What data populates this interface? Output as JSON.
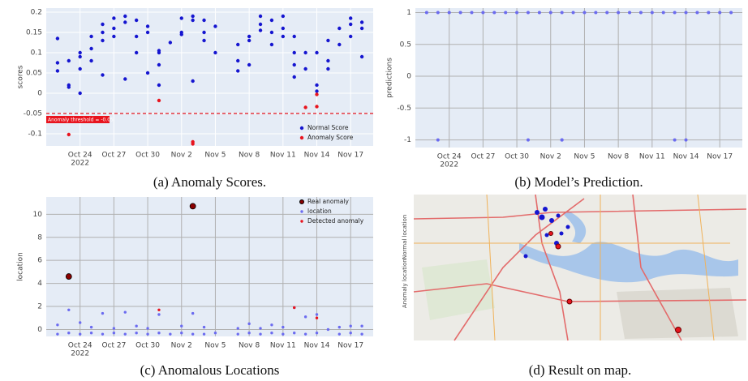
{
  "chart_data": [
    {
      "type": "scatter",
      "ylabel": "scores",
      "caption": "(a) Anomaly Scores.",
      "x_year_label": "2022",
      "xlim": [
        "2022-10-21",
        "2022-11-19"
      ],
      "ylim": [
        -0.13,
        0.21
      ],
      "yticks": [
        -0.1,
        -0.05,
        0,
        0.05,
        0.1,
        0.15,
        0.2
      ],
      "xticks": [
        {
          "value": "2022-10-24",
          "label": "Oct 24"
        },
        {
          "value": "2022-10-27",
          "label": "Oct 27"
        },
        {
          "value": "2022-10-30",
          "label": "Oct 30"
        },
        {
          "value": "2022-11-02",
          "label": "Nov 2"
        },
        {
          "value": "2022-11-05",
          "label": "Nov 5"
        },
        {
          "value": "2022-11-08",
          "label": "Nov 8"
        },
        {
          "value": "2022-11-11",
          "label": "Nov 11"
        },
        {
          "value": "2022-11-14",
          "label": "Nov 14"
        },
        {
          "value": "2022-11-17",
          "label": "Nov 17"
        }
      ],
      "grid": true,
      "grid_color": "#ffffff",
      "legend": "lower right",
      "threshold": {
        "value": -0.05,
        "label": "Anomaly threshold = -0.05",
        "color": "#e8141e"
      },
      "series": [
        {
          "name": "Normal Score",
          "color": "#1515d0",
          "marker_size": 2.2,
          "x": [
            "2022-10-22",
            "2022-10-22",
            "2022-10-22",
            "2022-10-23",
            "2022-10-23",
            "2022-10-23",
            "2022-10-24",
            "2022-10-24",
            "2022-10-24",
            "2022-10-24",
            "2022-10-25",
            "2022-10-25",
            "2022-10-25",
            "2022-10-26",
            "2022-10-26",
            "2022-10-26",
            "2022-10-26",
            "2022-10-27",
            "2022-10-27",
            "2022-10-27",
            "2022-10-28",
            "2022-10-28",
            "2022-10-28",
            "2022-10-29",
            "2022-10-29",
            "2022-10-29",
            "2022-10-30",
            "2022-10-30",
            "2022-10-30",
            "2022-10-31",
            "2022-10-31",
            "2022-10-31",
            "2022-10-31",
            "2022-11-01",
            "2022-11-02",
            "2022-11-02",
            "2022-11-02",
            "2022-11-03",
            "2022-11-03",
            "2022-11-03",
            "2022-11-04",
            "2022-11-04",
            "2022-11-04",
            "2022-11-05",
            "2022-11-05",
            "2022-11-07",
            "2022-11-07",
            "2022-11-07",
            "2022-11-08",
            "2022-11-08",
            "2022-11-08",
            "2022-11-09",
            "2022-11-09",
            "2022-11-09",
            "2022-11-10",
            "2022-11-10",
            "2022-11-10",
            "2022-11-11",
            "2022-11-11",
            "2022-11-11",
            "2022-11-12",
            "2022-11-12",
            "2022-11-12",
            "2022-11-12",
            "2022-11-13",
            "2022-11-13",
            "2022-11-14",
            "2022-11-14",
            "2022-11-14",
            "2022-11-15",
            "2022-11-15",
            "2022-11-15",
            "2022-11-16",
            "2022-11-16",
            "2022-11-17",
            "2022-11-17",
            "2022-11-17",
            "2022-11-18",
            "2022-11-18",
            "2022-11-18"
          ],
          "values": [
            0.135,
            0.075,
            0.055,
            0.02,
            0.015,
            0.08,
            0.1,
            0.09,
            0.06,
            0.0,
            0.14,
            0.11,
            0.08,
            0.17,
            0.15,
            0.13,
            0.045,
            0.16,
            0.185,
            0.14,
            0.19,
            0.175,
            0.035,
            0.18,
            0.14,
            0.1,
            0.15,
            0.165,
            0.05,
            0.1,
            0.07,
            0.02,
            0.105,
            0.125,
            0.185,
            0.15,
            0.145,
            0.18,
            0.19,
            0.03,
            0.15,
            0.18,
            0.13,
            0.165,
            0.1,
            0.12,
            0.08,
            0.055,
            0.14,
            0.13,
            0.07,
            0.17,
            0.19,
            0.155,
            0.18,
            0.15,
            0.12,
            0.16,
            0.19,
            0.14,
            0.1,
            0.07,
            0.04,
            0.14,
            0.1,
            0.06,
            0.1,
            0.02,
            0.005,
            0.13,
            0.08,
            0.06,
            0.16,
            0.12,
            0.185,
            0.17,
            0.14,
            0.16,
            0.175,
            0.09
          ]
        },
        {
          "name": "Anomaly Score",
          "color": "#e8141e",
          "marker_size": 2.2,
          "x": [
            "2022-10-23",
            "2022-10-31",
            "2022-11-03",
            "2022-11-03",
            "2022-11-13",
            "2022-11-14",
            "2022-11-14"
          ],
          "values": [
            -0.102,
            -0.018,
            -0.12,
            -0.125,
            -0.035,
            -0.003,
            -0.033
          ]
        }
      ]
    },
    {
      "type": "scatter",
      "ylabel": "predictions",
      "caption": "(b) Model’s Prediction.",
      "x_year_label": "2022",
      "xlim": [
        "2022-10-21",
        "2022-11-19"
      ],
      "ylim": [
        -1.12,
        1.07
      ],
      "yticks": [
        -1,
        -0.5,
        0,
        0.5,
        1
      ],
      "xticks": [
        {
          "value": "2022-10-24",
          "label": "Oct 24"
        },
        {
          "value": "2022-10-27",
          "label": "Oct 27"
        },
        {
          "value": "2022-10-30",
          "label": "Oct 30"
        },
        {
          "value": "2022-11-02",
          "label": "Nov 2"
        },
        {
          "value": "2022-11-05",
          "label": "Nov 5"
        },
        {
          "value": "2022-11-08",
          "label": "Nov 8"
        },
        {
          "value": "2022-11-11",
          "label": "Nov 11"
        },
        {
          "value": "2022-11-14",
          "label": "Nov 14"
        },
        {
          "value": "2022-11-17",
          "label": "Nov 17"
        }
      ],
      "grid": true,
      "grid_color": "#b0b0b0",
      "series": [
        {
          "color": "#6b6bf0",
          "marker_size": 2,
          "x": [
            "2022-10-22",
            "2022-10-23",
            "2022-10-24",
            "2022-10-25",
            "2022-10-26",
            "2022-10-27",
            "2022-10-28",
            "2022-10-29",
            "2022-10-30",
            "2022-10-31",
            "2022-11-01",
            "2022-11-02",
            "2022-11-03",
            "2022-11-04",
            "2022-11-05",
            "2022-11-06",
            "2022-11-07",
            "2022-11-08",
            "2022-11-09",
            "2022-11-10",
            "2022-11-11",
            "2022-11-12",
            "2022-11-13",
            "2022-11-14",
            "2022-11-15",
            "2022-11-16",
            "2022-11-17",
            "2022-11-18",
            "2022-10-23",
            "2022-10-31",
            "2022-11-03",
            "2022-11-03",
            "2022-11-13",
            "2022-11-14"
          ],
          "values": [
            1,
            1,
            1,
            1,
            1,
            1,
            1,
            1,
            1,
            1,
            1,
            1,
            1,
            1,
            1,
            1,
            1,
            1,
            1,
            1,
            1,
            1,
            1,
            1,
            1,
            1,
            1,
            1,
            -1,
            -1,
            -1,
            -1,
            -1,
            -1
          ]
        }
      ]
    },
    {
      "type": "scatter",
      "ylabel": "location",
      "caption": "(c) Anomalous Locations",
      "x_year_label": "2022",
      "xlim": [
        "2022-10-21",
        "2022-11-19"
      ],
      "ylim": [
        -0.6,
        11.5
      ],
      "yticks": [
        0,
        2,
        4,
        6,
        8,
        10
      ],
      "xticks": [
        {
          "value": "2022-10-24",
          "label": "Oct 24"
        },
        {
          "value": "2022-10-27",
          "label": "Oct 27"
        },
        {
          "value": "2022-10-30",
          "label": "Oct 30"
        },
        {
          "value": "2022-11-02",
          "label": "Nov 2"
        },
        {
          "value": "2022-11-05",
          "label": "Nov 5"
        },
        {
          "value": "2022-11-08",
          "label": "Nov 8"
        },
        {
          "value": "2022-11-11",
          "label": "Nov 11"
        },
        {
          "value": "2022-11-14",
          "label": "Nov 14"
        },
        {
          "value": "2022-11-17",
          "label": "Nov 17"
        }
      ],
      "grid": true,
      "grid_color": "#b0b0b0",
      "legend": "upper right",
      "series": [
        {
          "name": "Real anomaly",
          "color": "#8b0000",
          "marker_size": 3.5,
          "x": [
            "2022-10-23",
            "2022-11-03"
          ],
          "values": [
            4.6,
            10.7
          ]
        },
        {
          "name": "location",
          "color": "#6b6bf0",
          "marker_size": 1.7,
          "x": [
            "2022-10-22",
            "2022-10-22",
            "2022-10-23",
            "2022-10-23",
            "2022-10-24",
            "2022-10-24",
            "2022-10-25",
            "2022-10-25",
            "2022-10-26",
            "2022-10-26",
            "2022-10-27",
            "2022-10-27",
            "2022-10-28",
            "2022-10-28",
            "2022-10-29",
            "2022-10-29",
            "2022-10-30",
            "2022-10-30",
            "2022-10-31",
            "2022-10-31",
            "2022-11-01",
            "2022-11-02",
            "2022-11-02",
            "2022-11-03",
            "2022-11-03",
            "2022-11-04",
            "2022-11-04",
            "2022-11-05",
            "2022-11-07",
            "2022-11-07",
            "2022-11-08",
            "2022-11-08",
            "2022-11-09",
            "2022-11-09",
            "2022-11-10",
            "2022-11-10",
            "2022-11-11",
            "2022-11-11",
            "2022-11-12",
            "2022-11-12",
            "2022-11-13",
            "2022-11-13",
            "2022-11-14",
            "2022-11-14",
            "2022-11-15",
            "2022-11-16",
            "2022-11-16",
            "2022-11-17",
            "2022-11-17",
            "2022-11-18",
            "2022-11-18"
          ],
          "values": [
            -0.4,
            0.4,
            1.7,
            -0.3,
            0.6,
            -0.4,
            -0.3,
            0.2,
            1.4,
            -0.4,
            -0.3,
            0.1,
            1.5,
            -0.4,
            0.3,
            -0.3,
            0.1,
            -0.4,
            1.3,
            -0.3,
            -0.4,
            0.3,
            -0.3,
            1.4,
            -0.4,
            0.2,
            -0.4,
            -0.3,
            -0.4,
            0.1,
            -0.3,
            0.5,
            0.1,
            -0.4,
            0.4,
            -0.3,
            -0.4,
            0.2,
            1.9,
            -0.3,
            1.1,
            -0.4,
            1.3,
            -0.3,
            0.0,
            0.2,
            -0.4,
            0.3,
            -0.3,
            -0.4,
            0.3
          ]
        },
        {
          "name": "Detected anomaly",
          "color": "#e8141e",
          "marker_size": 1.7,
          "x": [
            "2022-10-31",
            "2022-11-12",
            "2022-11-14"
          ],
          "values": [
            1.7,
            1.9,
            1.0
          ]
        }
      ]
    }
  ],
  "map": {
    "caption": "(d) Result on map.",
    "legend": [
      "Anomaly location",
      "Normal location"
    ]
  }
}
